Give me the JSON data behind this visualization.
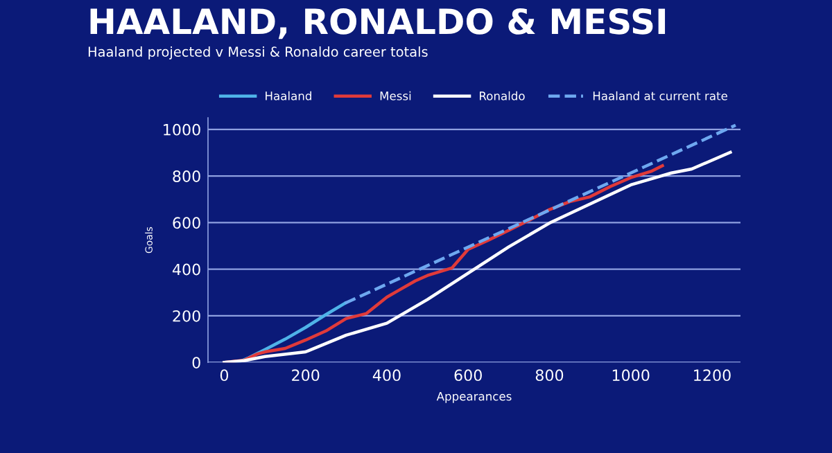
{
  "chart_data": {
    "type": "line",
    "title": "HAALAND, RONALDO & MESSI",
    "subtitle": "Haaland projected v Messi & Ronaldo career totals",
    "xlabel": "Appearances",
    "ylabel": "Goals",
    "series": [
      {
        "name": "Haaland",
        "color": "#4fb3e8",
        "x": [
          0,
          40,
          60,
          100,
          150,
          200,
          250,
          297
        ],
        "values": [
          0,
          5,
          20,
          55,
          100,
          150,
          205,
          254
        ]
      },
      {
        "name": "Messi",
        "color": "#e03a3a",
        "x": [
          0,
          50,
          80,
          100,
          150,
          200,
          250,
          300,
          350,
          400,
          430,
          470,
          500,
          560,
          600,
          650,
          700,
          750,
          800,
          850,
          900,
          950,
          1000,
          1050,
          1078
        ],
        "values": [
          0,
          10,
          35,
          45,
          60,
          96,
          135,
          188,
          210,
          280,
          310,
          350,
          373,
          405,
          485,
          525,
          567,
          610,
          656,
          690,
          711,
          755,
          793,
          820,
          844
        ]
      },
      {
        "name": "Ronaldo",
        "color": "#ffffff",
        "x": [
          0,
          50,
          100,
          200,
          300,
          400,
          500,
          600,
          700,
          800,
          900,
          1000,
          1100,
          1150,
          1245
        ],
        "values": [
          0,
          8,
          25,
          45,
          117,
          168,
          270,
          383,
          496,
          598,
          680,
          762,
          813,
          830,
          902
        ]
      },
      {
        "name": "Haaland at current rate",
        "color": "#6ea8f0",
        "line_style": "dashed",
        "x": [
          297,
          1258
        ],
        "values": [
          254,
          1018
        ]
      }
    ],
    "xlim": [
      -40,
      1270
    ],
    "ylim": [
      0,
      1050
    ],
    "xticks": [
      0,
      200,
      400,
      600,
      800,
      1000,
      1200
    ],
    "yticks": [
      0,
      200,
      400,
      600,
      800,
      1000
    ],
    "grid": "y",
    "legend": "top",
    "line_style": "solid",
    "marker": "none"
  }
}
